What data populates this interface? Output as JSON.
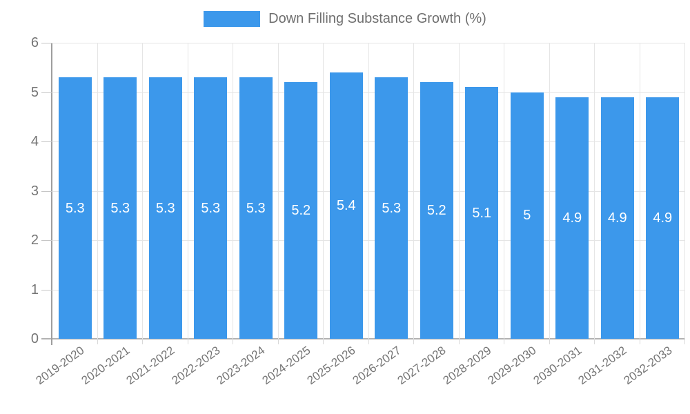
{
  "legend": {
    "label": "Down Filling Substance Growth (%)"
  },
  "colors": {
    "bar": "#3c98eb",
    "bar_label": "#ffffff",
    "axis_line": "#9e9e9e",
    "grid_line": "#e5e5e5",
    "tick_text": "#757575",
    "legend_text": "#6f6f6f",
    "background": "#ffffff"
  },
  "chart_data": {
    "type": "bar",
    "title": "Down Filling Substance Growth (%)",
    "categories": [
      "2019-2020",
      "2020-2021",
      "2021-2022",
      "2022-2023",
      "2023-2024",
      "2024-2025",
      "2025-2026",
      "2026-2027",
      "2027-2028",
      "2028-2029",
      "2029-2030",
      "2030-2031",
      "2031-2032",
      "2032-2033"
    ],
    "values": [
      5.3,
      5.3,
      5.3,
      5.3,
      5.3,
      5.2,
      5.4,
      5.3,
      5.2,
      5.1,
      5,
      4.9,
      4.9,
      4.9
    ],
    "xlabel": "",
    "ylabel": "",
    "ylim": [
      0,
      6
    ],
    "yticks": [
      0,
      1,
      2,
      3,
      4,
      5,
      6
    ],
    "grid": true,
    "legend_position": "top",
    "value_labels_inside_bars": true,
    "x_tick_rotation_deg": -36
  }
}
